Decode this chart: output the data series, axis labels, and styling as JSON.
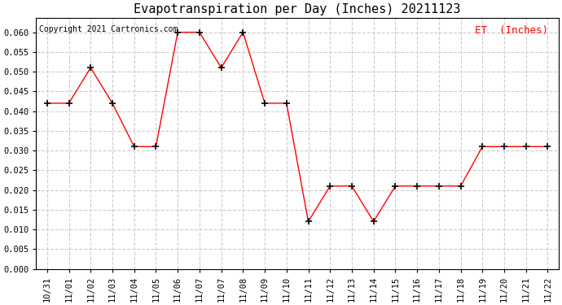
{
  "title": "Evapotranspiration per Day (Inches) 20211123",
  "copyright_text": "Copyright 2021 Cartronics.com",
  "legend_label": "ET  (Inches)",
  "x_labels": [
    "10/31",
    "11/01",
    "11/02",
    "11/03",
    "11/04",
    "11/05",
    "11/06",
    "11/07",
    "11/07",
    "11/08",
    "11/09",
    "11/10",
    "11/11",
    "11/12",
    "11/13",
    "11/14",
    "11/15",
    "11/16",
    "11/17",
    "11/18",
    "11/19",
    "11/20",
    "11/21",
    "11/22"
  ],
  "y_values": [
    0.042,
    0.042,
    0.051,
    0.042,
    0.031,
    0.031,
    0.06,
    0.06,
    0.051,
    0.06,
    0.042,
    0.042,
    0.012,
    0.021,
    0.021,
    0.012,
    0.021,
    0.021,
    0.021,
    0.021,
    0.031,
    0.031,
    0.031,
    0.031
  ],
  "line_color": "red",
  "marker_color": "black",
  "marker": "+",
  "ylim": [
    0.0,
    0.0637
  ],
  "yticks": [
    0.0,
    0.005,
    0.01,
    0.015,
    0.02,
    0.025,
    0.03,
    0.035,
    0.04,
    0.045,
    0.05,
    0.055,
    0.06
  ],
  "grid_color": "#cccccc",
  "grid_linestyle": "--",
  "background_color": "#ffffff",
  "title_fontsize": 11,
  "copyright_fontsize": 7,
  "legend_fontsize": 9,
  "tick_fontsize": 7.5
}
